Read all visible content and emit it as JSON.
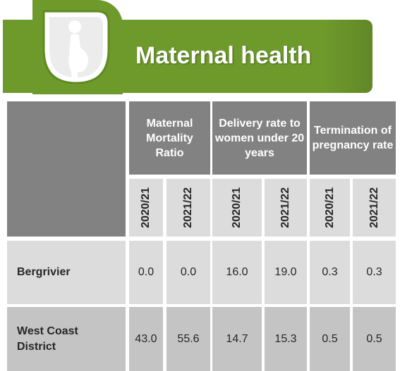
{
  "header": {
    "title": "Maternal health",
    "icon": "pregnant-woman-icon",
    "accent_color": "#6e9a2c"
  },
  "table": {
    "column_groups": [
      {
        "label": "Maternal Mortality Ratio",
        "years": [
          "2020/21",
          "2021/22"
        ]
      },
      {
        "label": "Delivery rate to women under 20 years",
        "years": [
          "2020/21",
          "2021/22"
        ]
      },
      {
        "label": "Termination of pregnancy rate",
        "years": [
          "2020/21",
          "2021/22"
        ]
      }
    ],
    "rows": [
      {
        "label": "Bergrivier",
        "values": [
          "0.0",
          "0.0",
          "16.0",
          "19.0",
          "0.3",
          "0.3"
        ]
      },
      {
        "label": "West Coast District",
        "values": [
          "43.0",
          "55.6",
          "14.7",
          "15.3",
          "0.5",
          "0.5"
        ]
      }
    ]
  }
}
